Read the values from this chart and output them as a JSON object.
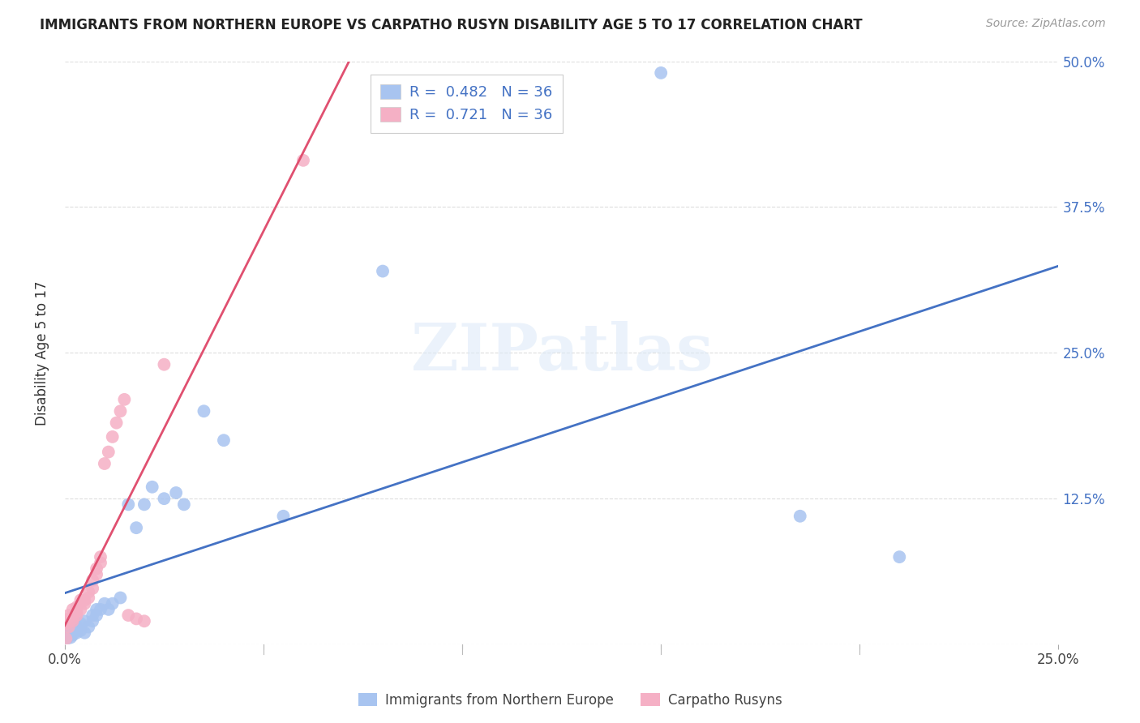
{
  "title": "IMMIGRANTS FROM NORTHERN EUROPE VS CARPATHO RUSYN DISABILITY AGE 5 TO 17 CORRELATION CHART",
  "source": "Source: ZipAtlas.com",
  "ylabel": "Disability Age 5 to 17",
  "xlim": [
    0,
    0.25
  ],
  "ylim": [
    0,
    0.5
  ],
  "xticks": [
    0.0,
    0.05,
    0.1,
    0.15,
    0.2,
    0.25
  ],
  "xticklabels": [
    "0.0%",
    "",
    "",
    "",
    "",
    "25.0%"
  ],
  "yticks_right": [
    0.0,
    0.125,
    0.25,
    0.375,
    0.5
  ],
  "yticklabels_right": [
    "",
    "12.5%",
    "25.0%",
    "37.5%",
    "50.0%"
  ],
  "blue_R": 0.482,
  "blue_N": 36,
  "pink_R": 0.721,
  "pink_N": 36,
  "blue_color": "#a8c4f0",
  "pink_color": "#f5b0c5",
  "blue_line_color": "#4472c4",
  "pink_line_color": "#e05070",
  "pink_line_dash": true,
  "watermark": "ZIPatlas",
  "legend_label_blue": "Immigrants from Northern Europe",
  "legend_label_pink": "Carpatho Rusyns",
  "blue_x": [
    0.0005,
    0.001,
    0.001,
    0.0015,
    0.002,
    0.002,
    0.003,
    0.003,
    0.004,
    0.004,
    0.005,
    0.005,
    0.006,
    0.007,
    0.007,
    0.008,
    0.008,
    0.009,
    0.01,
    0.011,
    0.012,
    0.014,
    0.016,
    0.018,
    0.02,
    0.022,
    0.025,
    0.028,
    0.03,
    0.035,
    0.055,
    0.08,
    0.15,
    0.185,
    0.21,
    0.04
  ],
  "blue_y": [
    0.005,
    0.008,
    0.01,
    0.006,
    0.008,
    0.012,
    0.01,
    0.015,
    0.012,
    0.018,
    0.01,
    0.02,
    0.015,
    0.02,
    0.025,
    0.025,
    0.03,
    0.03,
    0.035,
    0.03,
    0.035,
    0.04,
    0.12,
    0.1,
    0.12,
    0.135,
    0.125,
    0.13,
    0.12,
    0.2,
    0.11,
    0.32,
    0.49,
    0.11,
    0.075,
    0.175
  ],
  "pink_x": [
    0.0003,
    0.0005,
    0.001,
    0.001,
    0.001,
    0.001,
    0.002,
    0.002,
    0.002,
    0.002,
    0.003,
    0.003,
    0.003,
    0.004,
    0.004,
    0.005,
    0.005,
    0.006,
    0.006,
    0.007,
    0.007,
    0.008,
    0.008,
    0.009,
    0.009,
    0.01,
    0.011,
    0.012,
    0.013,
    0.014,
    0.015,
    0.016,
    0.018,
    0.02,
    0.025,
    0.06
  ],
  "pink_y": [
    0.005,
    0.018,
    0.015,
    0.02,
    0.022,
    0.025,
    0.02,
    0.022,
    0.025,
    0.03,
    0.028,
    0.025,
    0.032,
    0.03,
    0.038,
    0.035,
    0.038,
    0.04,
    0.045,
    0.048,
    0.055,
    0.06,
    0.065,
    0.07,
    0.075,
    0.155,
    0.165,
    0.178,
    0.19,
    0.2,
    0.21,
    0.025,
    0.022,
    0.02,
    0.24,
    0.415
  ]
}
